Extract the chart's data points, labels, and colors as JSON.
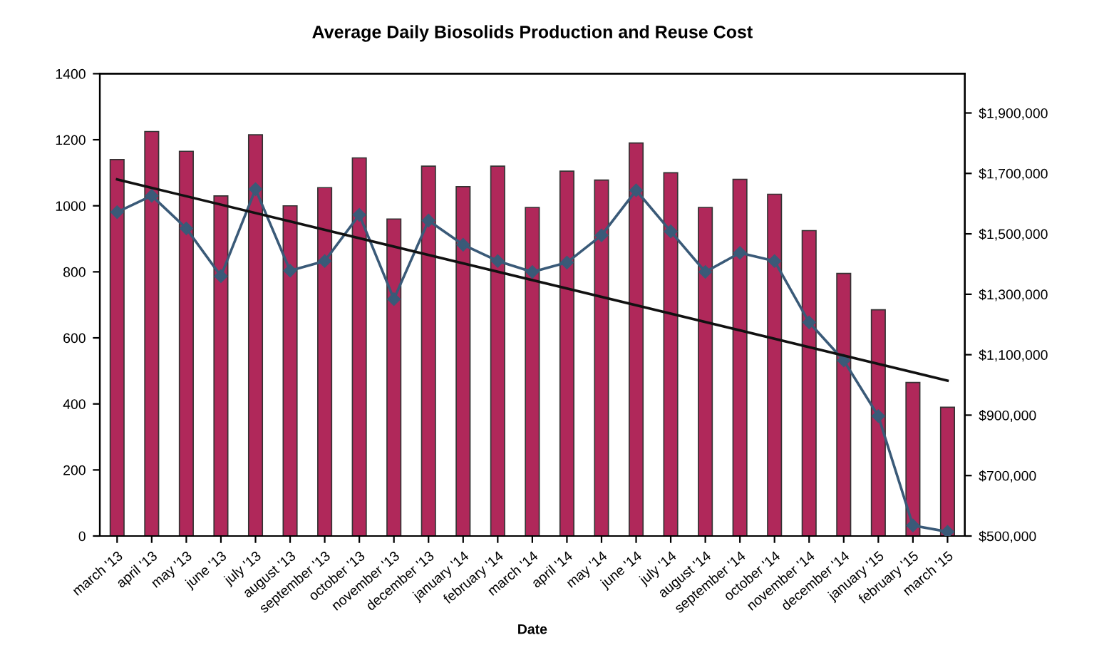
{
  "chart_data": {
    "type": "bar",
    "title": "Average Daily Biosolids Production and Reuse Cost",
    "xlabel": "Date",
    "categories": [
      "march '13",
      "april '13",
      "may '13",
      "june '13",
      "july '13",
      "august '13",
      "september '13",
      "october '13",
      "november '13",
      "december '13",
      "january '14",
      "february '14",
      "march '14",
      "april '14",
      "may '14",
      "june '14",
      "july '14",
      "august '14",
      "september '14",
      "october '14",
      "november '14",
      "december '14",
      "january '15",
      "february '15",
      "march '15"
    ],
    "series": [
      {
        "color": "#b0285a",
        "values": [
          1140,
          1225,
          1165,
          1030,
          1215,
          1000,
          1055,
          1145,
          960,
          1120,
          1058,
          1120,
          995,
          1105,
          1078,
          1190,
          1100,
          995,
          1080,
          1035,
          925,
          795,
          685,
          465,
          390
        ]
      },
      {
        "type": "line",
        "axis": "y2",
        "color": "#3a5a78",
        "marker": "diamond",
        "values": [
          1572000,
          1626000,
          1518000,
          1360000,
          1648000,
          1378000,
          1410000,
          1563000,
          1284000,
          1544000,
          1464000,
          1410000,
          1374000,
          1405000,
          1495000,
          1644000,
          1508000,
          1374000,
          1437000,
          1410000,
          1207000,
          1081000,
          897000,
          535000,
          514000
        ]
      },
      {
        "type": "line",
        "axis": "y2",
        "color": "#111111",
        "x": [
          "march '13",
          "march '15"
        ],
        "values": [
          1680000,
          1014000
        ]
      }
    ],
    "ylim": [
      0,
      1400
    ],
    "yticks": [
      0,
      200,
      400,
      600,
      800,
      1000,
      1200,
      1400
    ],
    "y2lim": [
      500000,
      2030000
    ],
    "y2ticks": [
      {
        "value": 500000,
        "label": "$500,000"
      },
      {
        "value": 700000,
        "label": "$700,000"
      },
      {
        "value": 900000,
        "label": "$900,000"
      },
      {
        "value": 1100000,
        "label": "$1,100,000"
      },
      {
        "value": 1300000,
        "label": "$1,300,000"
      },
      {
        "value": 1500000,
        "label": "$1,500,000"
      },
      {
        "value": 1700000,
        "label": "$1,700,000"
      },
      {
        "value": 1900000,
        "label": "$1,900,000"
      }
    ],
    "grid": false
  }
}
